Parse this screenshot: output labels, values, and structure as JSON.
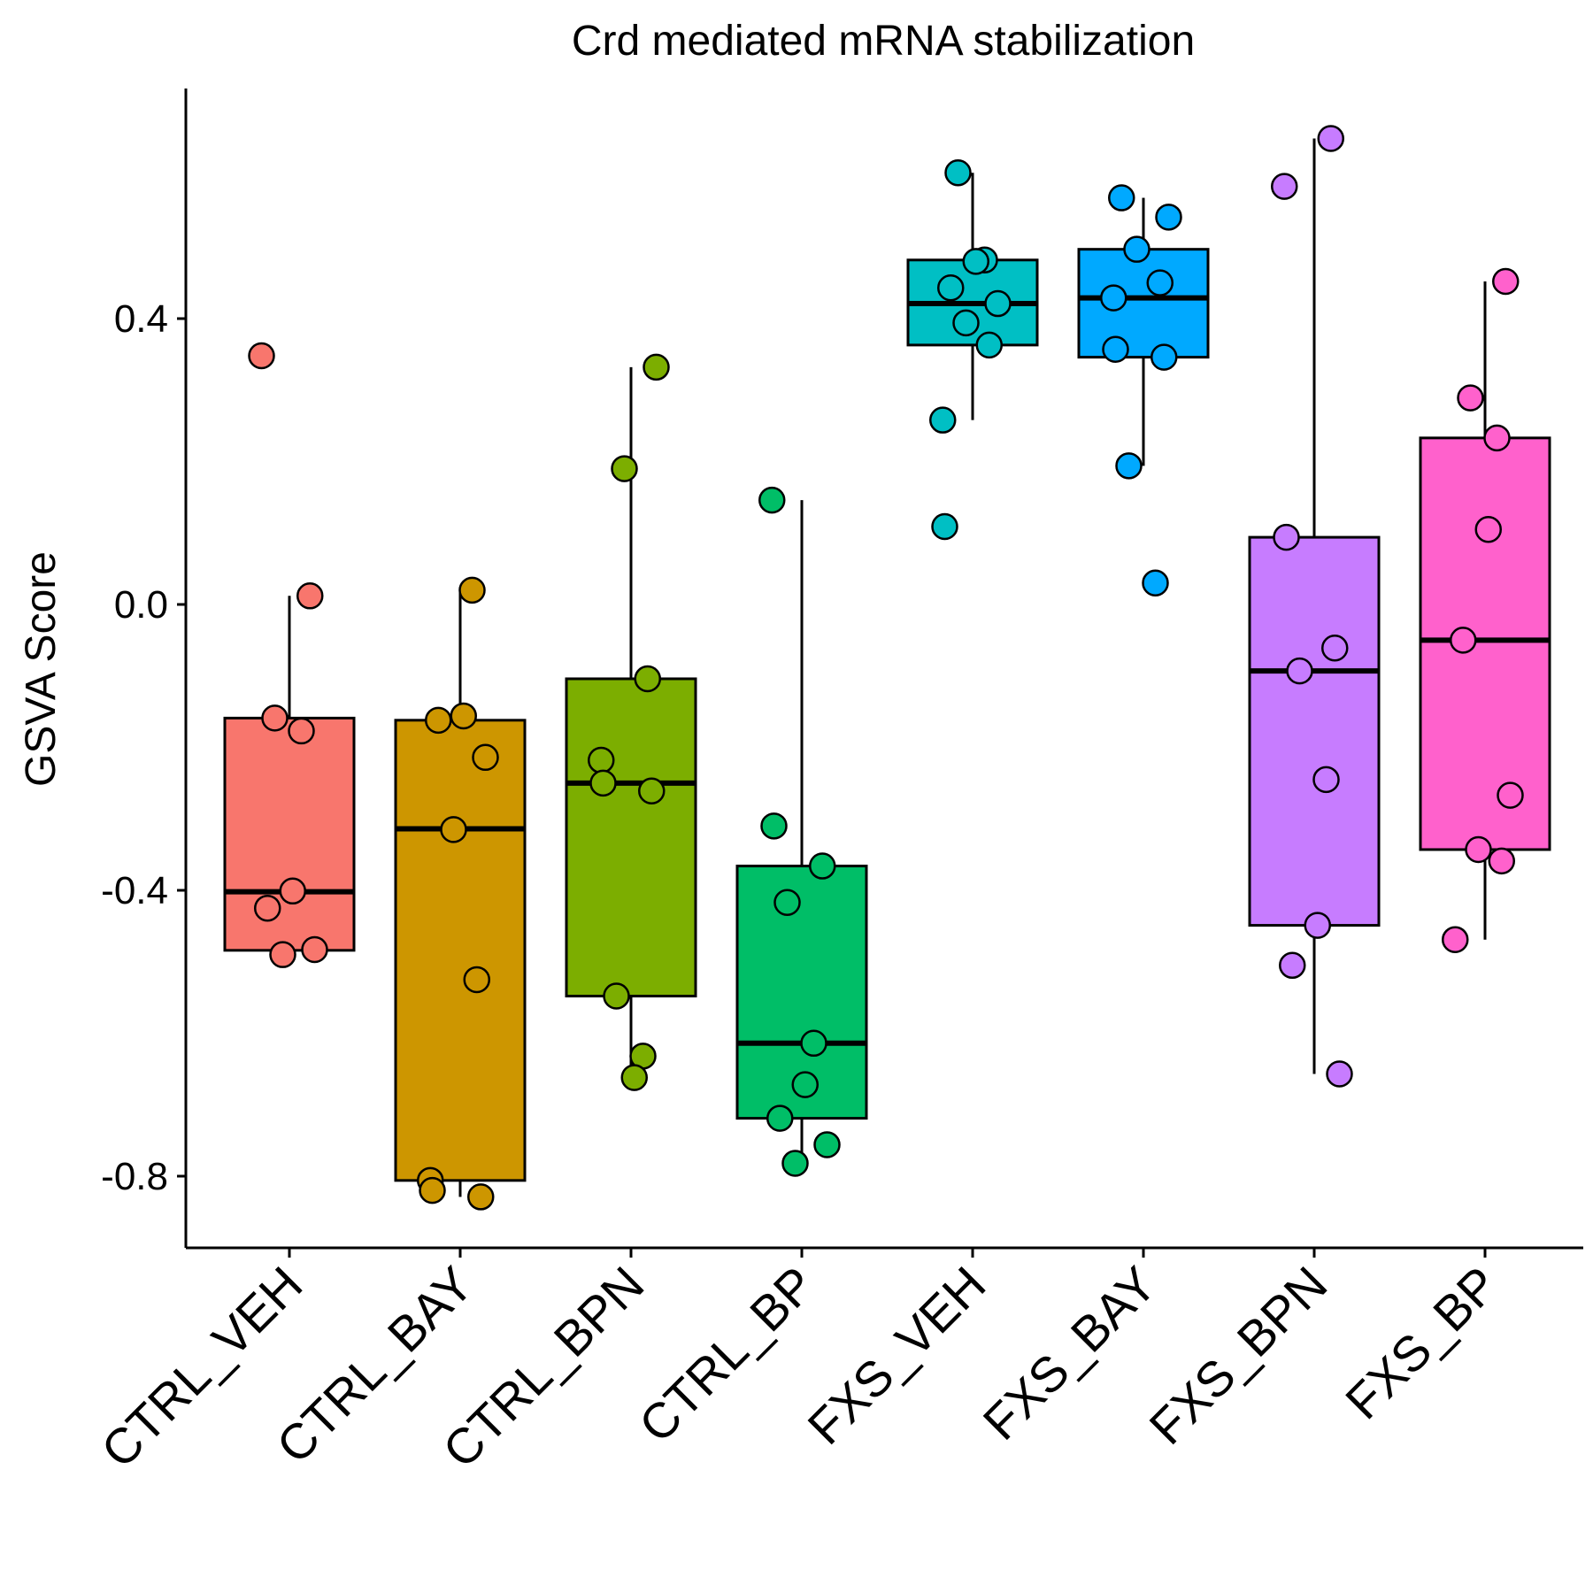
{
  "chart_data": {
    "type": "boxplot",
    "title": "Crd mediated mRNA stabilization",
    "xlabel": "",
    "ylabel": "GSVA Score",
    "ylim": [
      -0.9,
      0.72
    ],
    "yticks": [
      0.4,
      0.0,
      -0.4,
      -0.8
    ],
    "ytick_labels": [
      "0.4",
      "0.0",
      "-0.4",
      "-0.8"
    ],
    "grid": false,
    "legend": "none",
    "categories": [
      "CTRL_VEH",
      "CTRL_BAY",
      "CTRL_BPN",
      "CTRL_BP",
      "FXS_VEH",
      "FXS_BAY",
      "FXS_BPN",
      "FXS_BP"
    ],
    "groups": [
      {
        "name": "CTRL_VEH",
        "color": "#F8766D",
        "q1": -0.484,
        "median": -0.402,
        "q3": -0.159,
        "whisker_low": -0.49,
        "whisker_high": 0.012,
        "points": [
          0.348,
          0.012,
          -0.159,
          -0.177,
          -0.401,
          -0.425,
          -0.483,
          -0.49
        ]
      },
      {
        "name": "CTRL_BAY",
        "color": "#CD9600",
        "q1": -0.806,
        "median": -0.314,
        "q3": -0.162,
        "whisker_low": -0.829,
        "whisker_high": 0.02,
        "points": [
          0.02,
          -0.156,
          -0.162,
          -0.214,
          -0.315,
          -0.525,
          -0.806,
          -0.82,
          -0.829
        ]
      },
      {
        "name": "CTRL_BPN",
        "color": "#7CAE00",
        "q1": -0.548,
        "median": -0.25,
        "q3": -0.104,
        "whisker_low": -0.662,
        "whisker_high": 0.332,
        "points": [
          0.332,
          0.19,
          -0.104,
          -0.218,
          -0.25,
          -0.261,
          -0.548,
          -0.632,
          -0.662
        ]
      },
      {
        "name": "CTRL_BP",
        "color": "#00BE67",
        "q1": -0.719,
        "median": -0.614,
        "q3": -0.366,
        "whisker_low": -0.782,
        "whisker_high": 0.146,
        "points": [
          0.146,
          -0.31,
          -0.366,
          -0.417,
          -0.614,
          -0.672,
          -0.719,
          -0.756,
          -0.782
        ]
      },
      {
        "name": "FXS_VEH",
        "color": "#00BFC4",
        "q1": 0.363,
        "median": 0.421,
        "q3": 0.482,
        "whisker_low": 0.258,
        "whisker_high": 0.604,
        "points": [
          0.604,
          0.482,
          0.48,
          0.443,
          0.421,
          0.394,
          0.363,
          0.258,
          0.109
        ]
      },
      {
        "name": "FXS_BAY",
        "color": "#00A9FF",
        "q1": 0.346,
        "median": 0.429,
        "q3": 0.497,
        "whisker_low": 0.194,
        "whisker_high": 0.569,
        "points": [
          0.569,
          0.542,
          0.497,
          0.45,
          0.429,
          0.357,
          0.346,
          0.194,
          0.03
        ]
      },
      {
        "name": "FXS_BPN",
        "color": "#C77CFF",
        "q1": -0.449,
        "median": -0.093,
        "q3": 0.094,
        "whisker_low": -0.657,
        "whisker_high": 0.652,
        "points": [
          0.652,
          0.585,
          0.094,
          -0.061,
          -0.093,
          -0.245,
          -0.449,
          -0.505,
          -0.657
        ]
      },
      {
        "name": "FXS_BP",
        "color": "#FF61CC",
        "q1": -0.343,
        "median": -0.05,
        "q3": 0.233,
        "whisker_low": -0.469,
        "whisker_high": 0.452,
        "points": [
          0.452,
          0.289,
          0.233,
          0.105,
          -0.05,
          -0.267,
          -0.343,
          -0.359,
          -0.469
        ]
      }
    ]
  }
}
